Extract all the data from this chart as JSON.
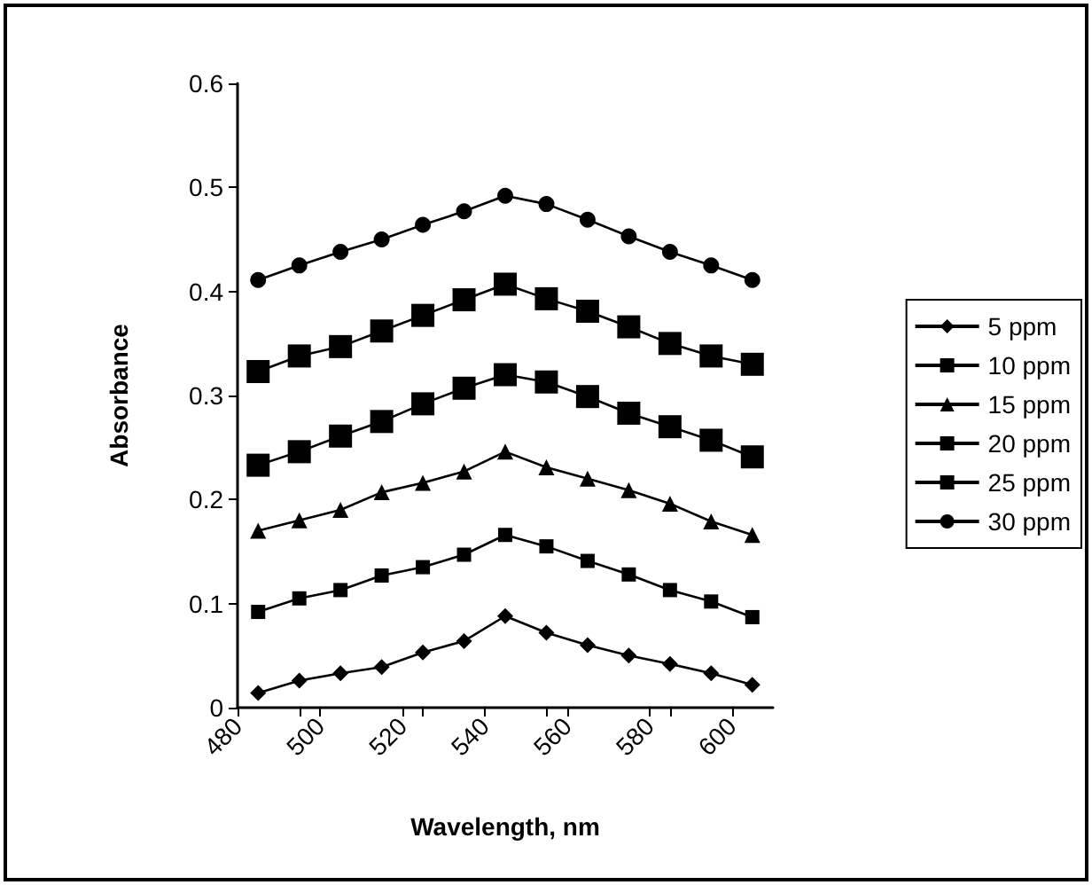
{
  "chart_data": {
    "type": "line",
    "xlabel": "Wavelength, nm",
    "ylabel": "Absorbance",
    "x": [
      485,
      495,
      505,
      515,
      525,
      535,
      545,
      555,
      565,
      575,
      585,
      595,
      605
    ],
    "series": [
      {
        "name": "5 ppm",
        "color": "#000000",
        "marker": "diamond",
        "values": [
          0.014,
          0.026,
          0.033,
          0.039,
          0.053,
          0.064,
          0.088,
          0.072,
          0.06,
          0.05,
          0.042,
          0.033,
          0.022
        ]
      },
      {
        "name": "10 ppm",
        "color": "#000000",
        "marker": "square",
        "values": [
          0.092,
          0.105,
          0.113,
          0.127,
          0.135,
          0.147,
          0.166,
          0.155,
          0.141,
          0.128,
          0.113,
          0.102,
          0.087
        ]
      },
      {
        "name": "15 ppm",
        "color": "#000000",
        "marker": "triangle",
        "values": [
          0.17,
          0.18,
          0.19,
          0.207,
          0.216,
          0.227,
          0.246,
          0.231,
          0.22,
          0.209,
          0.196,
          0.179,
          0.166
        ]
      },
      {
        "name": "20 ppm",
        "color": "#000000",
        "marker": "square",
        "values": [
          0.233,
          0.246,
          0.261,
          0.275,
          0.292,
          0.307,
          0.32,
          0.313,
          0.299,
          0.283,
          0.27,
          0.257,
          0.241
        ]
      },
      {
        "name": "25 ppm",
        "color": "#000000",
        "marker": "square",
        "values": [
          0.323,
          0.338,
          0.347,
          0.362,
          0.377,
          0.392,
          0.407,
          0.393,
          0.381,
          0.366,
          0.35,
          0.338,
          0.33
        ]
      },
      {
        "name": "30 ppm",
        "color": "#000000",
        "marker": "circle",
        "values": [
          0.411,
          0.425,
          0.438,
          0.45,
          0.464,
          0.477,
          0.492,
          0.484,
          0.469,
          0.453,
          0.438,
          0.425,
          0.411
        ]
      }
    ],
    "xlim": [
      480,
      610
    ],
    "xticks": [
      480,
      500,
      520,
      540,
      560,
      580,
      600
    ],
    "ylim": [
      0,
      0.6
    ],
    "yticks": [
      0,
      0.1,
      0.2,
      0.3,
      0.4,
      0.5,
      0.6
    ],
    "grid": false,
    "legend": "right",
    "line_style": "solid"
  }
}
